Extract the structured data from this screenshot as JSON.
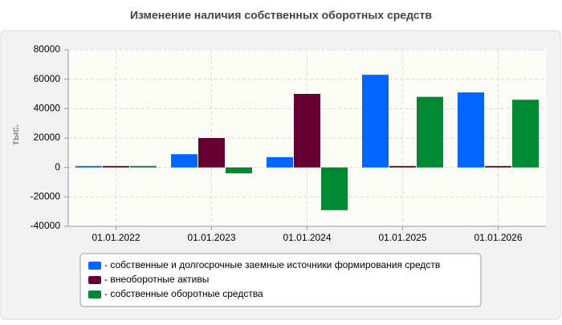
{
  "chart_data": {
    "type": "bar",
    "title": "Изменение наличия собственных оборотных средств",
    "y_label": "тыс.",
    "categories": [
      "01.01.2022",
      "01.01.2023",
      "01.01.2024",
      "01.01.2025",
      "01.01.2026"
    ],
    "series": [
      {
        "name": "- собственные и долгосрочные заемные источники формирования средств",
        "color": "#0066ff",
        "values": [
          1000,
          9000,
          7000,
          63000,
          51000
        ]
      },
      {
        "name": "- внеоборотные активы",
        "color": "#660033",
        "values": [
          1000,
          20000,
          50000,
          1000,
          1000
        ]
      },
      {
        "name": "- собственные оборотные средства",
        "color": "#008833",
        "values": [
          1000,
          -4000,
          -29000,
          48000,
          46000
        ]
      }
    ],
    "ylim": [
      -40000,
      80000
    ],
    "yticks": [
      -40000,
      -20000,
      0,
      20000,
      40000,
      60000,
      80000
    ],
    "grid": true
  }
}
